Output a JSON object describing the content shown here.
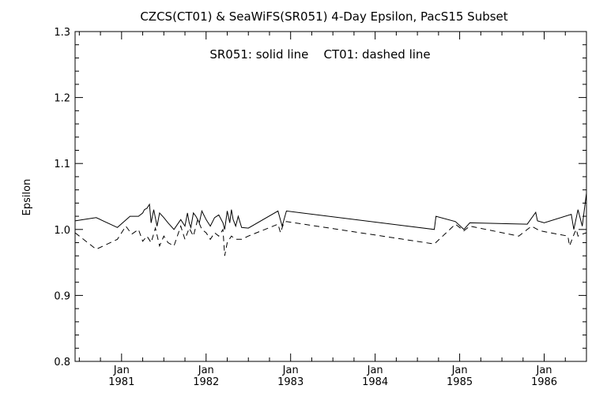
{
  "chart_data": {
    "type": "line",
    "title": "CZCS(CT01) & SeaWiFS(SR051) 4-Day Epsilon, PacS15 Subset",
    "annotation": "SR051: solid line    CT01: dashed line",
    "xlabel": "",
    "ylabel": "Epsilon",
    "xlim": [
      1980.45,
      1986.5
    ],
    "ylim": [
      0.8,
      1.3
    ],
    "grid": false,
    "x_ticks": [
      {
        "month": "Jan",
        "year": "1981",
        "x": 1981.0
      },
      {
        "month": "Jan",
        "year": "1982",
        "x": 1982.0
      },
      {
        "month": "Jan",
        "year": "1983",
        "x": 1983.0
      },
      {
        "month": "Jan",
        "year": "1984",
        "x": 1984.0
      },
      {
        "month": "Jan",
        "year": "1985",
        "x": 1985.0
      },
      {
        "month": "Jan",
        "year": "1986",
        "x": 1986.0
      }
    ],
    "y_ticks": [
      "0.8",
      "0.9",
      "1.0",
      "1.1",
      "1.2",
      "1.3"
    ],
    "series": [
      {
        "style": "solid",
        "x": [
          1980.45,
          1980.7,
          1980.95,
          1981.1,
          1981.2,
          1981.25,
          1981.27,
          1981.3,
          1981.33,
          1981.35,
          1981.38,
          1981.42,
          1981.45,
          1981.5,
          1981.55,
          1981.62,
          1981.7,
          1981.75,
          1981.78,
          1981.8,
          1981.82,
          1981.85,
          1981.88,
          1981.92,
          1981.95,
          1982.0,
          1982.05,
          1982.1,
          1982.15,
          1982.2,
          1982.22,
          1982.25,
          1982.28,
          1982.3,
          1982.32,
          1982.35,
          1982.38,
          1982.42,
          1982.5,
          1982.85,
          1982.9,
          1982.95,
          1984.7,
          1984.72,
          1984.95,
          1985.05,
          1985.12,
          1985.8,
          1985.9,
          1985.92,
          1986.0,
          1986.32,
          1986.35,
          1986.4,
          1986.45,
          1986.5
        ],
        "y": [
          1.013,
          1.018,
          1.003,
          1.02,
          1.02,
          1.025,
          1.03,
          1.032,
          1.038,
          1.01,
          1.03,
          1.005,
          1.025,
          1.018,
          1.01,
          1.0,
          1.015,
          1.005,
          1.025,
          1.01,
          1.003,
          1.025,
          1.02,
          1.01,
          1.028,
          1.015,
          1.005,
          1.018,
          1.022,
          1.01,
          1.0,
          1.028,
          1.01,
          1.03,
          1.015,
          1.005,
          1.02,
          1.003,
          1.002,
          1.028,
          1.005,
          1.028,
          1.0,
          1.02,
          1.012,
          1.0,
          1.01,
          1.008,
          1.026,
          1.013,
          1.01,
          1.023,
          1.0,
          1.03,
          1.005,
          1.055
        ]
      },
      {
        "style": "dashed",
        "x": [
          1980.45,
          1980.7,
          1980.95,
          1981.05,
          1981.12,
          1981.2,
          1981.25,
          1981.3,
          1981.35,
          1981.4,
          1981.45,
          1981.5,
          1981.55,
          1981.62,
          1981.7,
          1981.75,
          1981.8,
          1981.85,
          1981.9,
          1981.95,
          1982.0,
          1982.05,
          1982.1,
          1982.15,
          1982.2,
          1982.22,
          1982.25,
          1982.3,
          1982.35,
          1982.42,
          1982.5,
          1982.85,
          1982.88,
          1982.92,
          1982.95,
          1984.7,
          1984.95,
          1985.05,
          1985.12,
          1985.7,
          1985.85,
          1985.95,
          1986.28,
          1986.3,
          1986.33,
          1986.36,
          1986.38,
          1986.4,
          1986.45,
          1986.5
        ],
        "y": [
          0.995,
          0.97,
          0.985,
          1.005,
          0.993,
          1.0,
          0.982,
          0.99,
          0.98,
          1.002,
          0.975,
          0.99,
          0.98,
          0.975,
          1.005,
          0.985,
          1.002,
          0.99,
          1.015,
          1.0,
          0.995,
          0.985,
          0.995,
          0.99,
          1.0,
          0.96,
          0.98,
          0.99,
          0.985,
          0.985,
          0.99,
          1.008,
          0.995,
          1.01,
          1.012,
          0.978,
          1.008,
          0.998,
          1.005,
          0.99,
          1.005,
          0.998,
          0.99,
          0.975,
          0.985,
          0.995,
          1.0,
          0.99,
          0.993,
          0.995
        ]
      }
    ]
  }
}
